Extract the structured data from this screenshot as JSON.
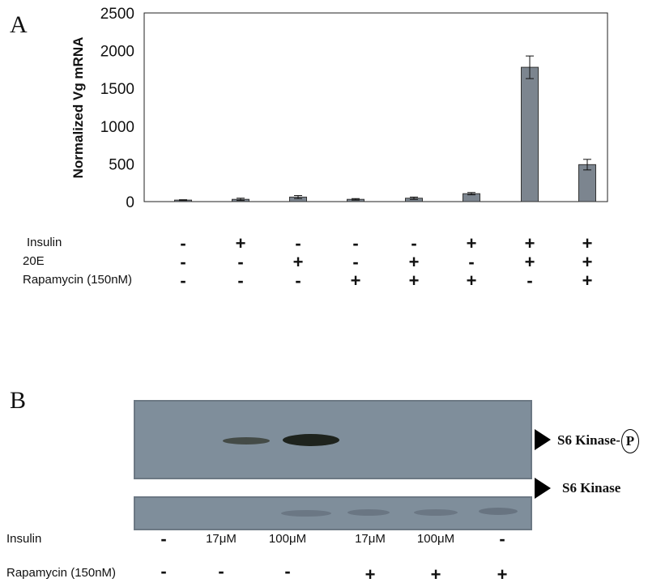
{
  "panel_a": {
    "letter": "A",
    "chart_data": {
      "type": "bar",
      "ylabel": "Normalized Vg mRNA",
      "xlabel": "",
      "title": "",
      "ylim": [
        0,
        2500
      ],
      "yticks": [
        "0",
        "500",
        "1000",
        "1500",
        "2000",
        "2500"
      ],
      "values": [
        20,
        30,
        60,
        30,
        45,
        105,
        1780,
        490
      ],
      "errors": [
        5,
        15,
        20,
        10,
        15,
        15,
        150,
        70
      ],
      "bar_color": "#7c858f",
      "grid": false
    },
    "treatments": [
      {
        "label": "Insulin",
        "signs": [
          "-",
          "+",
          "-",
          "-",
          "-",
          "+",
          "+",
          "+"
        ]
      },
      {
        "label": "20E",
        "signs": [
          "-",
          "-",
          "+",
          "-",
          "+",
          "-",
          "+",
          "+"
        ]
      },
      {
        "label": "Rapamycin (150nM)",
        "signs": [
          "-",
          "-",
          "-",
          "+",
          "+",
          "+",
          "-",
          "+"
        ]
      }
    ]
  },
  "panel_b": {
    "letter": "B",
    "blot_top_label": "S6 Kinase-",
    "blot_top_p": "P",
    "blot_bottom_label": "S6 Kinase",
    "insulin_label": "Insulin",
    "insulin_values": [
      "-",
      "17μM",
      "100μM",
      "17μM",
      "100μM",
      "-"
    ],
    "rapamycin_label": "Rapamycin (150nM)",
    "rapamycin_values": [
      "-",
      "-",
      "-",
      "+",
      "+",
      "+"
    ],
    "blot_color": "#7f8e9b"
  }
}
